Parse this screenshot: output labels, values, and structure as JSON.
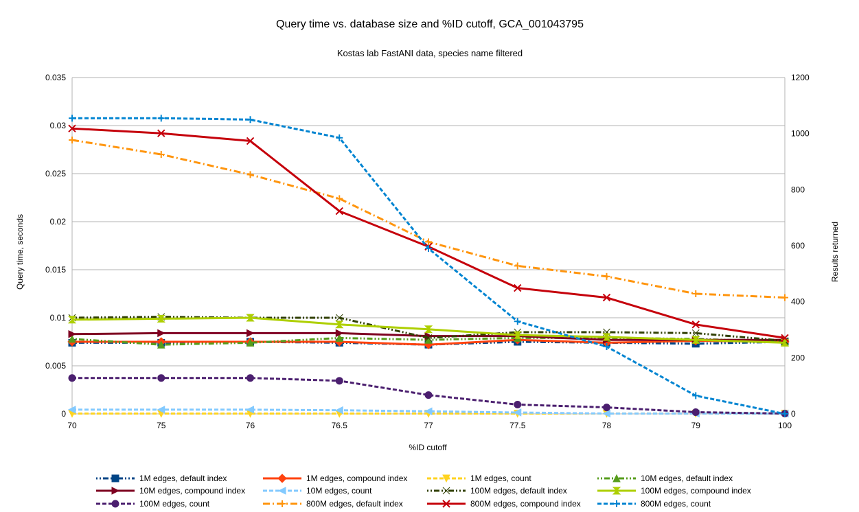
{
  "chart_data": {
    "type": "line",
    "title": "Query time vs. database size and %ID cutoff, GCA_001043795",
    "subtitle": "Kostas lab FastANI data, species name filtered",
    "xlabel": "%ID cutoff",
    "ylabel": "Query time, seconds",
    "y2label": "Results returned",
    "categories": [
      "70",
      "75",
      "76",
      "76.5",
      "77",
      "77.5",
      "78",
      "79",
      "100"
    ],
    "ylim": [
      0,
      0.035
    ],
    "yticks": [
      "0",
      "0.005",
      "0.01",
      "0.015",
      "0.02",
      "0.025",
      "0.03",
      "0.035"
    ],
    "y2lim": [
      0,
      1200
    ],
    "y2ticks": [
      "0",
      "200",
      "400",
      "600",
      "800",
      "1000",
      "1200"
    ],
    "grid": true,
    "legend_position": "bottom",
    "series": [
      {
        "name": "1M edges, default index",
        "axis": "left",
        "color": "#004586",
        "dash": "dashdotdot",
        "marker": "square",
        "values": [
          0.0074,
          0.0074,
          0.0075,
          0.0074,
          0.0072,
          0.0075,
          0.0074,
          0.0073,
          0.0075
        ]
      },
      {
        "name": "1M edges, compound index",
        "axis": "left",
        "color": "#ff420e",
        "dash": "solid",
        "marker": "diamond",
        "values": [
          0.0075,
          0.0075,
          0.0075,
          0.0075,
          0.0072,
          0.0077,
          0.0074,
          0.0076,
          0.0075
        ]
      },
      {
        "name": "1M edges, count",
        "axis": "right",
        "color": "#ffd320",
        "dash": "dash",
        "marker": "triangle-down",
        "values": [
          1,
          1,
          1,
          1,
          1,
          1,
          1,
          1,
          1
        ]
      },
      {
        "name": "10M edges, default index",
        "axis": "left",
        "color": "#579d1c",
        "dash": "dashdotdot",
        "marker": "triangle-up",
        "values": [
          0.0078,
          0.0072,
          0.0074,
          0.0079,
          0.0077,
          0.0079,
          0.0079,
          0.0078,
          0.0075
        ]
      },
      {
        "name": "10M edges, compound index",
        "axis": "left",
        "color": "#7e0021",
        "dash": "solid",
        "marker": "triangle-right",
        "values": [
          0.0083,
          0.0084,
          0.0084,
          0.0084,
          0.0081,
          0.0081,
          0.0077,
          0.0077,
          0.0077
        ]
      },
      {
        "name": "10M edges, count",
        "axis": "right",
        "color": "#83caff",
        "dash": "dash",
        "marker": "triangle-left",
        "values": [
          15,
          15,
          15,
          13,
          9,
          5,
          1,
          1,
          1
        ]
      },
      {
        "name": "100M edges, default index",
        "axis": "left",
        "color": "#314004",
        "dash": "dashdotdot",
        "marker": "bowtie",
        "values": [
          0.01,
          0.0101,
          0.01,
          0.01,
          0.0079,
          0.0085,
          0.0085,
          0.0084,
          0.0076
        ]
      },
      {
        "name": "100M edges, compound index",
        "axis": "left",
        "color": "#aecf00",
        "dash": "solid",
        "marker": "hourglass",
        "values": [
          0.0098,
          0.0099,
          0.01,
          0.0093,
          0.0088,
          0.0082,
          0.008,
          0.0077,
          0.0074
        ]
      },
      {
        "name": "100M edges, count",
        "axis": "right",
        "color": "#4b1f6f",
        "dash": "dash",
        "marker": "circle",
        "values": [
          128,
          128,
          128,
          118,
          67,
          33,
          23,
          6,
          1
        ]
      },
      {
        "name": "800M edges, default index",
        "axis": "left",
        "color": "#ff950e",
        "dash": "dashdot",
        "marker": "plus",
        "values": [
          0.0285,
          0.027,
          0.0249,
          0.0224,
          0.0179,
          0.0154,
          0.0143,
          0.0125,
          0.0121
        ]
      },
      {
        "name": "800M edges, compound index",
        "axis": "left",
        "color": "#c5000b",
        "dash": "solid",
        "marker": "x",
        "values": [
          0.0297,
          0.0292,
          0.0284,
          0.0211,
          0.0174,
          0.0131,
          0.0121,
          0.0093,
          0.0079
        ]
      },
      {
        "name": "800M edges, count",
        "axis": "right",
        "color": "#0084d1",
        "dash": "dash",
        "marker": "plus",
        "values": [
          1055,
          1055,
          1050,
          985,
          590,
          330,
          240,
          65,
          0
        ]
      }
    ]
  }
}
